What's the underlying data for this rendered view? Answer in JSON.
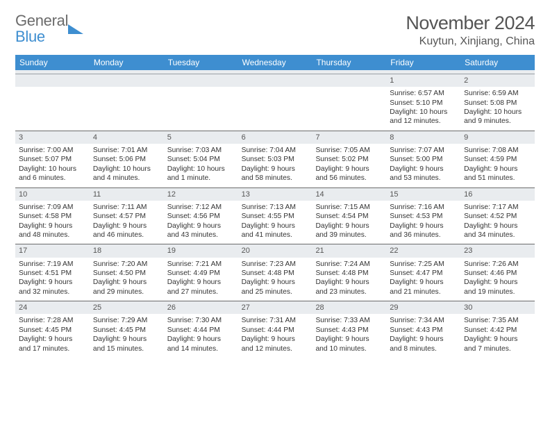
{
  "brand": {
    "line1": "General",
    "line2": "Blue"
  },
  "title": "November 2024",
  "location": "Kuytun, Xinjiang, China",
  "colors": {
    "header_bg": "#3e8ed0",
    "header_text": "#ffffff",
    "daynum_bg": "#e9ecef",
    "border": "#6b6b6b",
    "text": "#333333",
    "title_text": "#555555"
  },
  "day_names": [
    "Sunday",
    "Monday",
    "Tuesday",
    "Wednesday",
    "Thursday",
    "Friday",
    "Saturday"
  ],
  "weeks": [
    [
      null,
      null,
      null,
      null,
      null,
      {
        "n": "1",
        "sr": "Sunrise: 6:57 AM",
        "ss": "Sunset: 5:10 PM",
        "d1": "Daylight: 10 hours",
        "d2": "and 12 minutes."
      },
      {
        "n": "2",
        "sr": "Sunrise: 6:59 AM",
        "ss": "Sunset: 5:08 PM",
        "d1": "Daylight: 10 hours",
        "d2": "and 9 minutes."
      }
    ],
    [
      {
        "n": "3",
        "sr": "Sunrise: 7:00 AM",
        "ss": "Sunset: 5:07 PM",
        "d1": "Daylight: 10 hours",
        "d2": "and 6 minutes."
      },
      {
        "n": "4",
        "sr": "Sunrise: 7:01 AM",
        "ss": "Sunset: 5:06 PM",
        "d1": "Daylight: 10 hours",
        "d2": "and 4 minutes."
      },
      {
        "n": "5",
        "sr": "Sunrise: 7:03 AM",
        "ss": "Sunset: 5:04 PM",
        "d1": "Daylight: 10 hours",
        "d2": "and 1 minute."
      },
      {
        "n": "6",
        "sr": "Sunrise: 7:04 AM",
        "ss": "Sunset: 5:03 PM",
        "d1": "Daylight: 9 hours",
        "d2": "and 58 minutes."
      },
      {
        "n": "7",
        "sr": "Sunrise: 7:05 AM",
        "ss": "Sunset: 5:02 PM",
        "d1": "Daylight: 9 hours",
        "d2": "and 56 minutes."
      },
      {
        "n": "8",
        "sr": "Sunrise: 7:07 AM",
        "ss": "Sunset: 5:00 PM",
        "d1": "Daylight: 9 hours",
        "d2": "and 53 minutes."
      },
      {
        "n": "9",
        "sr": "Sunrise: 7:08 AM",
        "ss": "Sunset: 4:59 PM",
        "d1": "Daylight: 9 hours",
        "d2": "and 51 minutes."
      }
    ],
    [
      {
        "n": "10",
        "sr": "Sunrise: 7:09 AM",
        "ss": "Sunset: 4:58 PM",
        "d1": "Daylight: 9 hours",
        "d2": "and 48 minutes."
      },
      {
        "n": "11",
        "sr": "Sunrise: 7:11 AM",
        "ss": "Sunset: 4:57 PM",
        "d1": "Daylight: 9 hours",
        "d2": "and 46 minutes."
      },
      {
        "n": "12",
        "sr": "Sunrise: 7:12 AM",
        "ss": "Sunset: 4:56 PM",
        "d1": "Daylight: 9 hours",
        "d2": "and 43 minutes."
      },
      {
        "n": "13",
        "sr": "Sunrise: 7:13 AM",
        "ss": "Sunset: 4:55 PM",
        "d1": "Daylight: 9 hours",
        "d2": "and 41 minutes."
      },
      {
        "n": "14",
        "sr": "Sunrise: 7:15 AM",
        "ss": "Sunset: 4:54 PM",
        "d1": "Daylight: 9 hours",
        "d2": "and 39 minutes."
      },
      {
        "n": "15",
        "sr": "Sunrise: 7:16 AM",
        "ss": "Sunset: 4:53 PM",
        "d1": "Daylight: 9 hours",
        "d2": "and 36 minutes."
      },
      {
        "n": "16",
        "sr": "Sunrise: 7:17 AM",
        "ss": "Sunset: 4:52 PM",
        "d1": "Daylight: 9 hours",
        "d2": "and 34 minutes."
      }
    ],
    [
      {
        "n": "17",
        "sr": "Sunrise: 7:19 AM",
        "ss": "Sunset: 4:51 PM",
        "d1": "Daylight: 9 hours",
        "d2": "and 32 minutes."
      },
      {
        "n": "18",
        "sr": "Sunrise: 7:20 AM",
        "ss": "Sunset: 4:50 PM",
        "d1": "Daylight: 9 hours",
        "d2": "and 29 minutes."
      },
      {
        "n": "19",
        "sr": "Sunrise: 7:21 AM",
        "ss": "Sunset: 4:49 PM",
        "d1": "Daylight: 9 hours",
        "d2": "and 27 minutes."
      },
      {
        "n": "20",
        "sr": "Sunrise: 7:23 AM",
        "ss": "Sunset: 4:48 PM",
        "d1": "Daylight: 9 hours",
        "d2": "and 25 minutes."
      },
      {
        "n": "21",
        "sr": "Sunrise: 7:24 AM",
        "ss": "Sunset: 4:48 PM",
        "d1": "Daylight: 9 hours",
        "d2": "and 23 minutes."
      },
      {
        "n": "22",
        "sr": "Sunrise: 7:25 AM",
        "ss": "Sunset: 4:47 PM",
        "d1": "Daylight: 9 hours",
        "d2": "and 21 minutes."
      },
      {
        "n": "23",
        "sr": "Sunrise: 7:26 AM",
        "ss": "Sunset: 4:46 PM",
        "d1": "Daylight: 9 hours",
        "d2": "and 19 minutes."
      }
    ],
    [
      {
        "n": "24",
        "sr": "Sunrise: 7:28 AM",
        "ss": "Sunset: 4:45 PM",
        "d1": "Daylight: 9 hours",
        "d2": "and 17 minutes."
      },
      {
        "n": "25",
        "sr": "Sunrise: 7:29 AM",
        "ss": "Sunset: 4:45 PM",
        "d1": "Daylight: 9 hours",
        "d2": "and 15 minutes."
      },
      {
        "n": "26",
        "sr": "Sunrise: 7:30 AM",
        "ss": "Sunset: 4:44 PM",
        "d1": "Daylight: 9 hours",
        "d2": "and 14 minutes."
      },
      {
        "n": "27",
        "sr": "Sunrise: 7:31 AM",
        "ss": "Sunset: 4:44 PM",
        "d1": "Daylight: 9 hours",
        "d2": "and 12 minutes."
      },
      {
        "n": "28",
        "sr": "Sunrise: 7:33 AM",
        "ss": "Sunset: 4:43 PM",
        "d1": "Daylight: 9 hours",
        "d2": "and 10 minutes."
      },
      {
        "n": "29",
        "sr": "Sunrise: 7:34 AM",
        "ss": "Sunset: 4:43 PM",
        "d1": "Daylight: 9 hours",
        "d2": "and 8 minutes."
      },
      {
        "n": "30",
        "sr": "Sunrise: 7:35 AM",
        "ss": "Sunset: 4:42 PM",
        "d1": "Daylight: 9 hours",
        "d2": "and 7 minutes."
      }
    ]
  ]
}
